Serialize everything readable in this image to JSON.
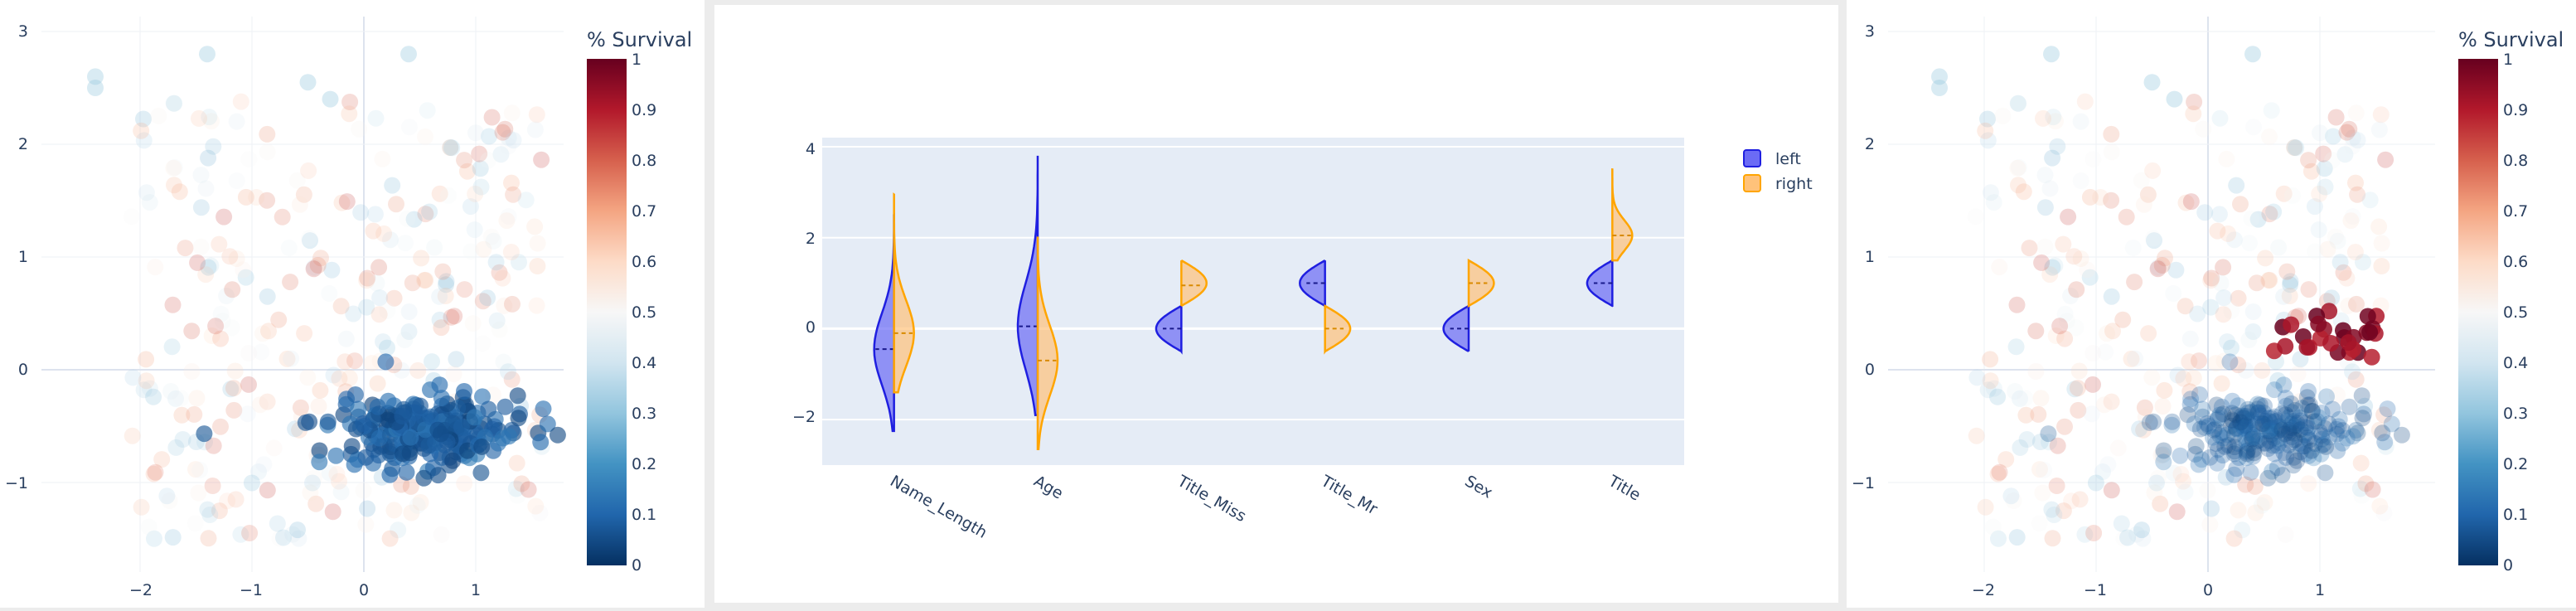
{
  "colors": {
    "left_fill": "#6b6bf5",
    "left_line": "#1f1fe0",
    "right_fill": "#ffc27a",
    "right_line": "#ffa500",
    "plot_bg": "#e5ecf6",
    "axis_text": "#2a3f5f",
    "colorscale": [
      "#053061",
      "#2166ac",
      "#4393c3",
      "#92c5de",
      "#d1e5f0",
      "#f7f7f7",
      "#fddbc7",
      "#f4a582",
      "#d6604d",
      "#b2182b",
      "#67001f"
    ]
  },
  "left_scatter": {
    "colorbar_title": "% Survival",
    "colorbar_ticks": [
      "0",
      "0.1",
      "0.2",
      "0.3",
      "0.4",
      "0.5",
      "0.6",
      "0.7",
      "0.8",
      "0.9",
      "1"
    ],
    "x_ticks": [
      "−2",
      "−1",
      "0",
      "1"
    ],
    "y_ticks": [
      "−1",
      "0",
      "1",
      "2",
      "3"
    ]
  },
  "right_scatter": {
    "colorbar_title": "% Survival",
    "colorbar_ticks": [
      "0",
      "0.1",
      "0.2",
      "0.3",
      "0.4",
      "0.5",
      "0.6",
      "0.7",
      "0.8",
      "0.9",
      "1"
    ],
    "x_ticks": [
      "−2",
      "−1",
      "0",
      "1"
    ],
    "y_ticks": [
      "−1",
      "0",
      "1",
      "2",
      "3"
    ]
  },
  "chart_data": [
    {
      "type": "scatter",
      "xlim": [
        -2.2,
        1.75
      ],
      "ylim": [
        -1.7,
        3.15
      ],
      "colorbar": {
        "title": "% Survival",
        "range": [
          0,
          1
        ]
      },
      "description_of_clusters": "dense dark-blue (low survival) cluster near x 0.0-1.3, y -0.3 to -0.9; sparse faint points elsewhere",
      "grid": true,
      "legend": "none"
    },
    {
      "type": "violin",
      "categories": [
        "Name_Length",
        "Age",
        "Title_Miss",
        "Title_Mr",
        "Sex",
        "Title"
      ],
      "series": [
        {
          "name": "left",
          "median": [
            -0.45,
            0.05,
            0.0,
            1.0,
            0.0,
            1.0
          ],
          "min": [
            -2.25,
            -1.9,
            -0.5,
            0.5,
            -0.5,
            0.5
          ],
          "max": [
            2.5,
            3.8,
            0.5,
            1.5,
            0.5,
            1.5
          ]
        },
        {
          "name": "right",
          "median": [
            -0.1,
            -0.7,
            0.95,
            0.0,
            1.0,
            2.05
          ],
          "min": [
            -1.4,
            -2.65,
            0.5,
            -0.5,
            0.5,
            1.5
          ],
          "max": [
            2.95,
            2.0,
            1.5,
            0.5,
            1.5,
            3.5
          ]
        }
      ],
      "y_ticks": [
        "−2",
        "0",
        "2",
        "4"
      ],
      "ylim": [
        -3.0,
        4.2
      ],
      "legend_position": "top-right",
      "legend_entries": [
        "left",
        "right"
      ],
      "grid": true
    },
    {
      "type": "scatter",
      "xlim": [
        -2.2,
        1.75
      ],
      "ylim": [
        -1.7,
        3.15
      ],
      "colorbar": {
        "title": "% Survival",
        "range": [
          0,
          1
        ]
      },
      "description_of_clusters": "faint blue cluster near x 0.0-1.2, y -0.3 to -0.9; highlighted dark-red (high survival) cluster near x 0.3-1.5, y 0.1 to 0.55",
      "grid": true,
      "legend": "none"
    }
  ]
}
